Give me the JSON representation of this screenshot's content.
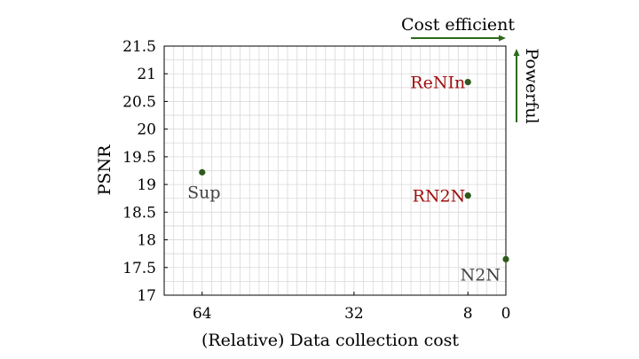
{
  "chart_data": {
    "type": "scatter",
    "xlabel": "(Relative) Data collection cost",
    "ylabel": "PSNR",
    "x_reversed": true,
    "xlim": [
      72,
      0
    ],
    "ylim": [
      17,
      21.5
    ],
    "x_ticks": [
      64,
      32,
      8,
      0
    ],
    "y_ticks": [
      17,
      17.5,
      18,
      18.5,
      19,
      19.5,
      20,
      20.5,
      21,
      21.5
    ],
    "grid": true,
    "points": [
      {
        "label": "Sup",
        "x": 64,
        "y": 19.22,
        "label_color": "#444444",
        "label_pos": "below"
      },
      {
        "label": "ReNIn",
        "x": 8,
        "y": 20.85,
        "label_color": "#a01010",
        "label_pos": "left"
      },
      {
        "label": "RN2N",
        "x": 8,
        "y": 18.8,
        "label_color": "#a01010",
        "label_pos": "left"
      },
      {
        "label": "N2N",
        "x": 0,
        "y": 17.65,
        "label_color": "#444444",
        "label_pos": "below-left"
      }
    ],
    "annotations": [
      {
        "text": "Cost efficient",
        "direction": "right"
      },
      {
        "text": "Powerful",
        "direction": "up"
      }
    ],
    "colors": {
      "marker": "#2d5a1b",
      "arrow": "#2d6a1b",
      "grid": "#d9d9d9"
    }
  }
}
